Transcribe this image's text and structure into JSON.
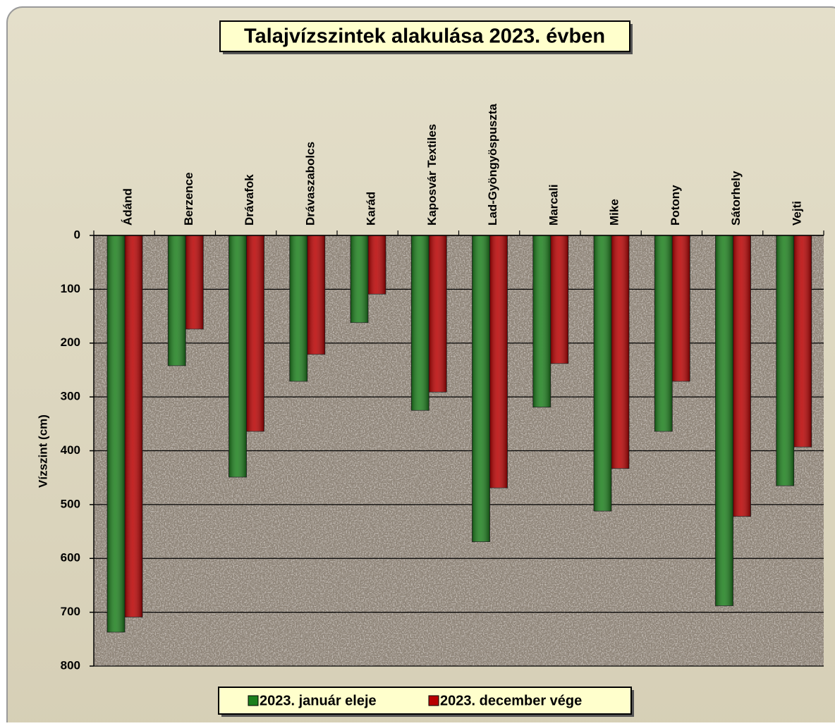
{
  "chart_data": {
    "type": "bar",
    "title": "Talajvízszintek alakulása 2023. évben",
    "y_label": "Vízszint (cm)",
    "categories": [
      "Ádánd",
      "Berzence",
      "Drávafok",
      "Drávaszabolcs",
      "Karád",
      "Kaposvár Textiles",
      "Lad-Gyöngyöspuszta",
      "Marcali",
      "Mike",
      "Potony",
      "Sátorhely",
      "Vejti"
    ],
    "series": [
      {
        "name": "2023. január eleje",
        "color": "#1c7f1c",
        "values": [
          737,
          242,
          449,
          271,
          162,
          325,
          569,
          319,
          512,
          364,
          688,
          465
        ]
      },
      {
        "name": "2023. december vége",
        "color": "#b80000",
        "values": [
          709,
          174,
          364,
          221,
          109,
          291,
          469,
          238,
          433,
          271,
          522,
          393
        ]
      }
    ],
    "ylim": [
      0,
      800
    ],
    "yticks": [
      0,
      100,
      200,
      300,
      400,
      500,
      600,
      700,
      800
    ],
    "y_inverted": true,
    "grid": true,
    "legend": "bottom"
  }
}
